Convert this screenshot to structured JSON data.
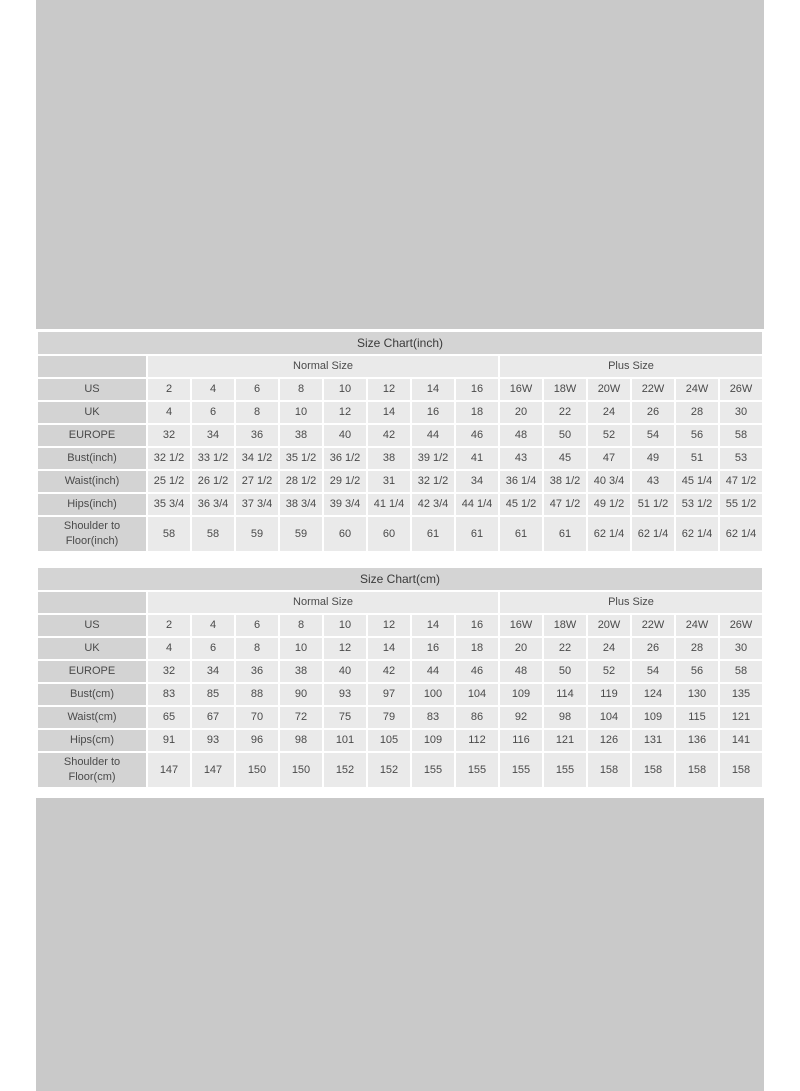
{
  "colors": {
    "page_background": "#ffffff",
    "image_block_gray": "#c9c9c9",
    "title_bar_bg": "#d4d4d4",
    "label_cell_bg": "#d3d3d3",
    "value_cell_bg": "#eaeaea",
    "text": "#4a4a4a"
  },
  "chart_data": [
    {
      "type": "table",
      "title": "Size Chart(inch)",
      "column_groups": [
        {
          "label": "Normal Size",
          "span": 8
        },
        {
          "label": "Plus Size",
          "span": 6
        }
      ],
      "rows": [
        {
          "label": "US",
          "values": [
            "2",
            "4",
            "6",
            "8",
            "10",
            "12",
            "14",
            "16",
            "16W",
            "18W",
            "20W",
            "22W",
            "24W",
            "26W"
          ]
        },
        {
          "label": "UK",
          "values": [
            "4",
            "6",
            "8",
            "10",
            "12",
            "14",
            "16",
            "18",
            "20",
            "22",
            "24",
            "26",
            "28",
            "30"
          ]
        },
        {
          "label": "EUROPE",
          "values": [
            "32",
            "34",
            "36",
            "38",
            "40",
            "42",
            "44",
            "46",
            "48",
            "50",
            "52",
            "54",
            "56",
            "58"
          ]
        },
        {
          "label": "Bust(inch)",
          "values": [
            "32 1/2",
            "33 1/2",
            "34 1/2",
            "35 1/2",
            "36 1/2",
            "38",
            "39 1/2",
            "41",
            "43",
            "45",
            "47",
            "49",
            "51",
            "53"
          ]
        },
        {
          "label": "Waist(inch)",
          "values": [
            "25 1/2",
            "26 1/2",
            "27 1/2",
            "28 1/2",
            "29 1/2",
            "31",
            "32 1/2",
            "34",
            "36 1/4",
            "38 1/2",
            "40 3/4",
            "43",
            "45 1/4",
            "47 1/2"
          ]
        },
        {
          "label": "Hips(inch)",
          "values": [
            "35 3/4",
            "36 3/4",
            "37 3/4",
            "38 3/4",
            "39 3/4",
            "41 1/4",
            "42 3/4",
            "44 1/4",
            "45 1/2",
            "47 1/2",
            "49 1/2",
            "51 1/2",
            "53 1/2",
            "55 1/2"
          ]
        },
        {
          "label": "Shoulder to Floor(inch)",
          "values": [
            "58",
            "58",
            "59",
            "59",
            "60",
            "60",
            "61",
            "61",
            "61",
            "61",
            "62 1/4",
            "62 1/4",
            "62 1/4",
            "62 1/4"
          ]
        }
      ]
    },
    {
      "type": "table",
      "title": "Size Chart(cm)",
      "column_groups": [
        {
          "label": "Normal Size",
          "span": 8
        },
        {
          "label": "Plus Size",
          "span": 6
        }
      ],
      "rows": [
        {
          "label": "US",
          "values": [
            "2",
            "4",
            "6",
            "8",
            "10",
            "12",
            "14",
            "16",
            "16W",
            "18W",
            "20W",
            "22W",
            "24W",
            "26W"
          ]
        },
        {
          "label": "UK",
          "values": [
            "4",
            "6",
            "8",
            "10",
            "12",
            "14",
            "16",
            "18",
            "20",
            "22",
            "24",
            "26",
            "28",
            "30"
          ]
        },
        {
          "label": "EUROPE",
          "values": [
            "32",
            "34",
            "36",
            "38",
            "40",
            "42",
            "44",
            "46",
            "48",
            "50",
            "52",
            "54",
            "56",
            "58"
          ]
        },
        {
          "label": "Bust(cm)",
          "values": [
            "83",
            "85",
            "88",
            "90",
            "93",
            "97",
            "100",
            "104",
            "109",
            "114",
            "119",
            "124",
            "130",
            "135"
          ]
        },
        {
          "label": "Waist(cm)",
          "values": [
            "65",
            "67",
            "70",
            "72",
            "75",
            "79",
            "83",
            "86",
            "92",
            "98",
            "104",
            "109",
            "115",
            "121"
          ]
        },
        {
          "label": "Hips(cm)",
          "values": [
            "91",
            "93",
            "96",
            "98",
            "101",
            "105",
            "109",
            "112",
            "116",
            "121",
            "126",
            "131",
            "136",
            "141"
          ]
        },
        {
          "label": "Shoulder to Floor(cm)",
          "values": [
            "147",
            "147",
            "150",
            "150",
            "152",
            "152",
            "155",
            "155",
            "155",
            "155",
            "158",
            "158",
            "158",
            "158"
          ]
        }
      ]
    }
  ]
}
